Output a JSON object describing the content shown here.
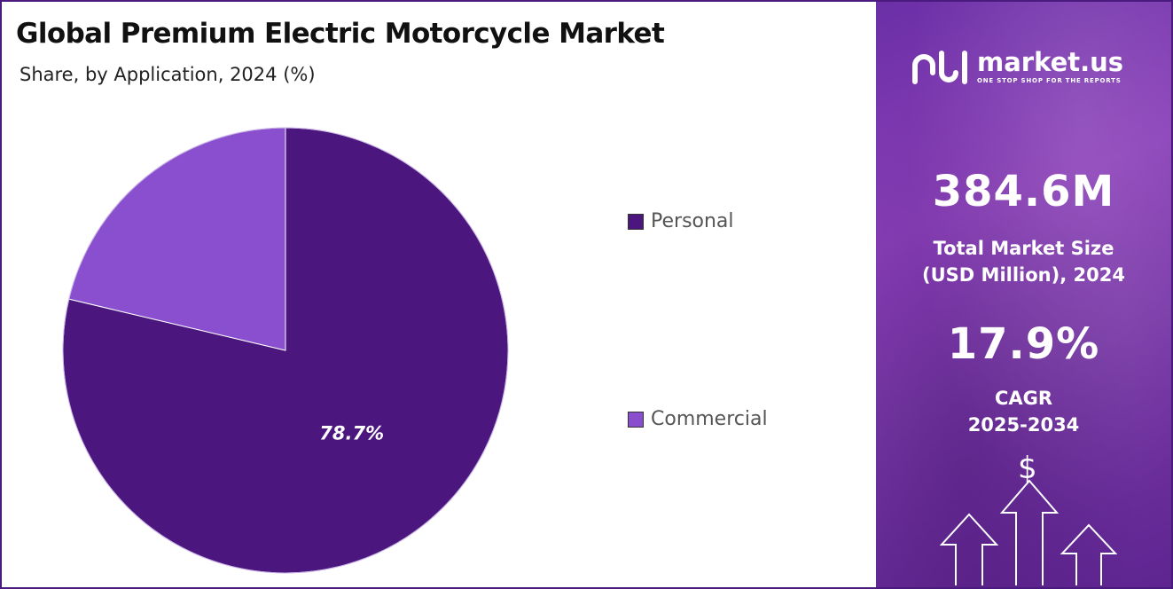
{
  "header": {
    "title": "Global Premium Electric Motorcycle Market",
    "subtitle": "Share, by Application, 2024 (%)"
  },
  "chart_data": {
    "type": "pie",
    "title": "Global Premium Electric Motorcycle Market",
    "subtitle": "Share, by Application, 2024 (%)",
    "categories": [
      "Personal",
      "Commercial"
    ],
    "values": [
      78.7,
      21.3
    ],
    "colors": [
      "#4b167e",
      "#8a4fcf"
    ],
    "data_labels": [
      "78.7%",
      ""
    ],
    "legend_position": "right"
  },
  "legend": {
    "items": [
      {
        "label": "Personal",
        "color": "#4b167e"
      },
      {
        "label": "Commercial",
        "color": "#8a4fcf"
      }
    ]
  },
  "sidebar": {
    "brand_name": "market.us",
    "brand_tagline": "ONE STOP SHOP FOR THE REPORTS",
    "market_size_value": "384.6M",
    "market_size_label_line1": "Total Market Size",
    "market_size_label_line2": "(USD Million), 2024",
    "cagr_value": "17.9%",
    "cagr_label_line1": "CAGR",
    "cagr_label_line2": "2025-2034",
    "currency_symbol": "$"
  },
  "colors": {
    "frame": "#4a1a7e",
    "sidebar_bg": "#7a3aa8"
  },
  "icons": [
    "market-us-logo-icon",
    "dollar-icon",
    "up-arrow-icon"
  ]
}
